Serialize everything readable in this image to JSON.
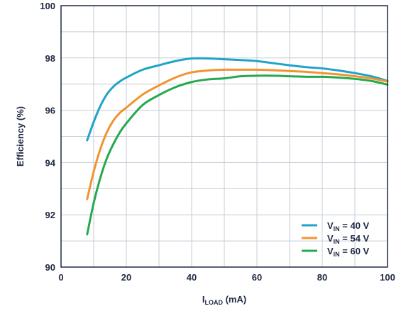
{
  "chart_data": {
    "type": "line",
    "title": "",
    "xlabel": {
      "main": "I",
      "sub": "LOAD",
      "unit": " (mA)"
    },
    "ylabel": "Efficiency (%)",
    "xlim": [
      0,
      100
    ],
    "ylim": [
      90,
      100
    ],
    "xticks": [
      "0",
      "20",
      "40",
      "60",
      "80",
      "100"
    ],
    "yticks": [
      "90",
      "92",
      "94",
      "96",
      "98",
      "100"
    ],
    "grid": true,
    "legend_position": "bottom-right",
    "series": [
      {
        "legend": {
          "main": "V",
          "sub": "IN",
          "rest": " = 40 V"
        },
        "color": "#1fa3c9",
        "x": [
          8,
          10,
          12,
          14,
          16,
          18,
          20,
          25,
          30,
          35,
          40,
          45,
          50,
          55,
          60,
          65,
          70,
          75,
          80,
          85,
          90,
          95,
          100
        ],
        "y": [
          94.85,
          95.55,
          96.15,
          96.6,
          96.9,
          97.1,
          97.25,
          97.55,
          97.72,
          97.88,
          97.98,
          97.98,
          97.95,
          97.92,
          97.88,
          97.8,
          97.72,
          97.65,
          97.6,
          97.52,
          97.42,
          97.3,
          97.12
        ]
      },
      {
        "legend": {
          "main": "V",
          "sub": "IN",
          "rest": " = 54 V"
        },
        "color": "#f29330",
        "x": [
          8,
          10,
          12,
          14,
          16,
          18,
          20,
          25,
          30,
          35,
          40,
          45,
          50,
          55,
          60,
          65,
          70,
          75,
          80,
          85,
          90,
          95,
          100
        ],
        "y": [
          92.6,
          93.65,
          94.5,
          95.15,
          95.6,
          95.9,
          96.1,
          96.6,
          96.95,
          97.25,
          97.45,
          97.52,
          97.55,
          97.55,
          97.55,
          97.53,
          97.5,
          97.47,
          97.42,
          97.37,
          97.3,
          97.22,
          97.1
        ]
      },
      {
        "legend": {
          "main": "V",
          "sub": "IN",
          "rest": " = 60 V"
        },
        "color": "#26a84f",
        "x": [
          8,
          10,
          12,
          14,
          16,
          18,
          20,
          25,
          30,
          35,
          40,
          45,
          50,
          55,
          60,
          65,
          70,
          75,
          80,
          85,
          90,
          95,
          100
        ],
        "y": [
          91.25,
          92.45,
          93.4,
          94.15,
          94.7,
          95.15,
          95.5,
          96.2,
          96.58,
          96.88,
          97.08,
          97.18,
          97.22,
          97.3,
          97.32,
          97.32,
          97.3,
          97.28,
          97.28,
          97.25,
          97.2,
          97.12,
          96.98
        ]
      }
    ]
  }
}
